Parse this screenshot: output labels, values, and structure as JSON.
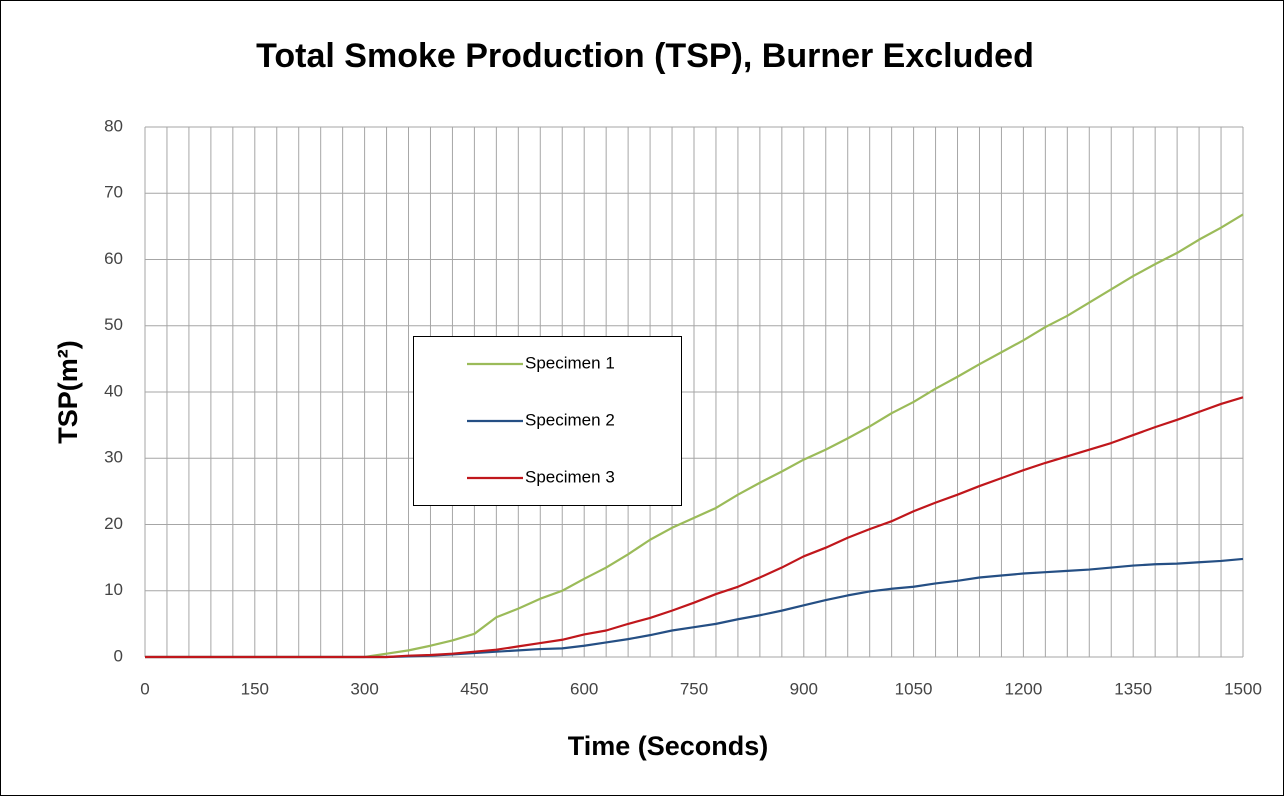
{
  "chart_data": {
    "type": "line",
    "title": "Total Smoke Production (TSP), Burner Excluded",
    "xlabel": "Time (Seconds)",
    "ylabel": "TSP(m²)",
    "x": [
      0,
      30,
      60,
      90,
      120,
      150,
      180,
      210,
      240,
      270,
      300,
      330,
      360,
      390,
      420,
      450,
      480,
      510,
      540,
      570,
      600,
      630,
      660,
      690,
      720,
      750,
      780,
      810,
      840,
      870,
      900,
      930,
      960,
      990,
      1020,
      1050,
      1080,
      1110,
      1140,
      1170,
      1200,
      1230,
      1260,
      1290,
      1320,
      1350,
      1380,
      1410,
      1440,
      1470,
      1500
    ],
    "series": [
      {
        "name": "Specimen 1",
        "color": "#9bbb59",
        "values": [
          0,
          0,
          0,
          0,
          0,
          0,
          0,
          0,
          0,
          0,
          0,
          0.5,
          1,
          1.7,
          2.5,
          3.5,
          6,
          7.3,
          8.8,
          10,
          11.8,
          13.5,
          15.5,
          17.7,
          19.5,
          21,
          22.5,
          24.5,
          26.3,
          28,
          29.8,
          31.3,
          33,
          34.8,
          36.8,
          38.5,
          40.5,
          42.3,
          44.2,
          46,
          47.8,
          49.8,
          51.5,
          53.5,
          55.5,
          57.5,
          59.3,
          61,
          63,
          64.8,
          66.8
        ]
      },
      {
        "name": "Specimen 2",
        "color": "#254f84",
        "values": [
          0,
          0,
          0,
          0,
          0,
          0,
          0,
          0,
          0,
          0,
          0,
          0,
          0.1,
          0.2,
          0.4,
          0.6,
          0.8,
          1,
          1.2,
          1.3,
          1.7,
          2.2,
          2.7,
          3.3,
          4,
          4.5,
          5,
          5.7,
          6.3,
          7,
          7.8,
          8.6,
          9.3,
          9.9,
          10.3,
          10.6,
          11.1,
          11.5,
          12,
          12.3,
          12.6,
          12.8,
          13,
          13.2,
          13.5,
          13.8,
          14,
          14.1,
          14.3,
          14.5,
          14.8
        ]
      },
      {
        "name": "Specimen 3",
        "color": "#c0171c",
        "values": [
          0,
          0,
          0,
          0,
          0,
          0,
          0,
          0,
          0,
          0,
          0,
          0,
          0.2,
          0.3,
          0.5,
          0.8,
          1.1,
          1.6,
          2.1,
          2.6,
          3.4,
          4,
          5,
          5.9,
          7,
          8.2,
          9.5,
          10.6,
          12,
          13.5,
          15.2,
          16.5,
          18,
          19.3,
          20.5,
          22,
          23.3,
          24.5,
          25.8,
          27,
          28.2,
          29.3,
          30.3,
          31.3,
          32.3,
          33.5,
          34.7,
          35.8,
          37,
          38.2,
          39.2
        ]
      }
    ],
    "xlim": [
      0,
      1500
    ],
    "xticks": [
      0,
      150,
      300,
      450,
      600,
      750,
      900,
      1050,
      1200,
      1350,
      1500
    ],
    "xgrid": [
      0,
      30,
      60,
      90,
      120,
      150,
      180,
      210,
      240,
      270,
      300,
      330,
      360,
      390,
      420,
      450,
      480,
      510,
      540,
      570,
      600,
      630,
      660,
      690,
      720,
      750,
      780,
      810,
      840,
      870,
      900,
      930,
      960,
      990,
      1020,
      1050,
      1080,
      1110,
      1140,
      1170,
      1200,
      1230,
      1260,
      1290,
      1320,
      1350,
      1380,
      1410,
      1440,
      1470,
      1500
    ],
    "ylim": [
      0,
      80
    ],
    "yticks": [
      0,
      10,
      20,
      30,
      40,
      50,
      60,
      70,
      80
    ],
    "grid": true,
    "legend": "center"
  }
}
